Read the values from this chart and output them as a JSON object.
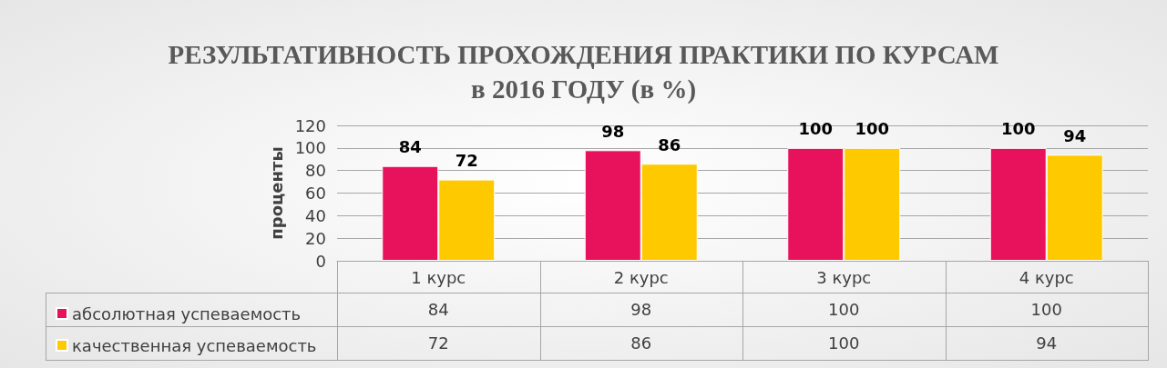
{
  "chart_data": {
    "type": "bar",
    "title": "РЕЗУЛЬТАТИВНОСТЬ ПРОХОЖДЕНИЯ ПРАКТИКИ ПО КУРСАМ\nв 2016 ГОДУ (в %)",
    "ylabel": "проценты",
    "categories": [
      "1 курс",
      "2 курс",
      "3 курс",
      "4 курс"
    ],
    "series": [
      {
        "name": "абсолютная успеваемость",
        "color": "#e8125c",
        "values": [
          84,
          98,
          100,
          100
        ],
        "value_labels": [
          "84",
          "98",
          "100",
          "100"
        ]
      },
      {
        "name": "качественная успеваемость",
        "color": "#ffc900",
        "values": [
          72,
          86,
          100,
          94
        ],
        "value_labels": [
          "72",
          "86",
          "100",
          "94"
        ]
      }
    ],
    "ylim": [
      0,
      120
    ],
    "yticks": [
      0,
      20,
      40,
      60,
      80,
      100,
      120
    ],
    "grid": "y",
    "legend": "bottom",
    "annotations": [
      "84",
      "98",
      "100",
      "100",
      "72",
      "86",
      "100",
      "94"
    ]
  }
}
